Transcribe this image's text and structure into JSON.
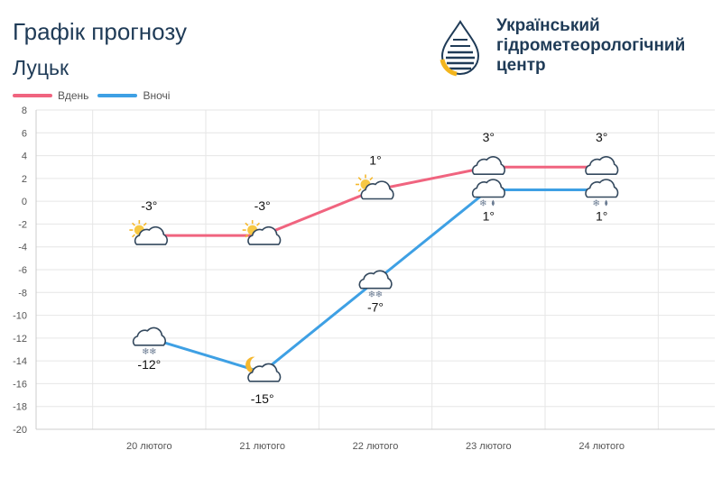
{
  "header": {
    "title": "Графік прогнозу",
    "city": "Луцьк"
  },
  "logo": {
    "line1": "Український",
    "line2": "гідрометеорологічний",
    "line3": "центр"
  },
  "colors": {
    "day": "#f0647f",
    "night": "#3ea0e4",
    "grid": "#e6e6e6",
    "text": "#1f3b57"
  },
  "chart_data": {
    "type": "line",
    "categories": [
      "20 лютого",
      "21 лютого",
      "22 лютого",
      "23 лютого",
      "24 лютого"
    ],
    "ylim": [
      -20,
      8
    ],
    "yticks": [
      8,
      6,
      4,
      2,
      0,
      -2,
      -4,
      -6,
      -8,
      -10,
      -12,
      -14,
      -16,
      -18,
      -20
    ],
    "grid": true,
    "legend_position": "top-left",
    "series": [
      {
        "name": "Вдень",
        "color": "#f0647f",
        "values": [
          -3,
          -3,
          1,
          3,
          3
        ],
        "labels": [
          "-3°",
          "-3°",
          "1°",
          "3°",
          "3°"
        ],
        "icons": [
          "sun-cloud-icon",
          "sun-cloud-icon",
          "sun-cloud-icon",
          "cloud-icon",
          "cloud-icon"
        ]
      },
      {
        "name": "Вночі",
        "color": "#3ea0e4",
        "values": [
          -12,
          -15,
          -7,
          1,
          1
        ],
        "labels": [
          "-12°",
          "-15°",
          "-7°",
          "1°",
          "1°"
        ],
        "icons": [
          "cloud-snow-icon",
          "moon-cloud-icon",
          "cloud-snow-icon",
          "cloud-sleet-icon",
          "cloud-sleet-icon"
        ]
      }
    ]
  }
}
